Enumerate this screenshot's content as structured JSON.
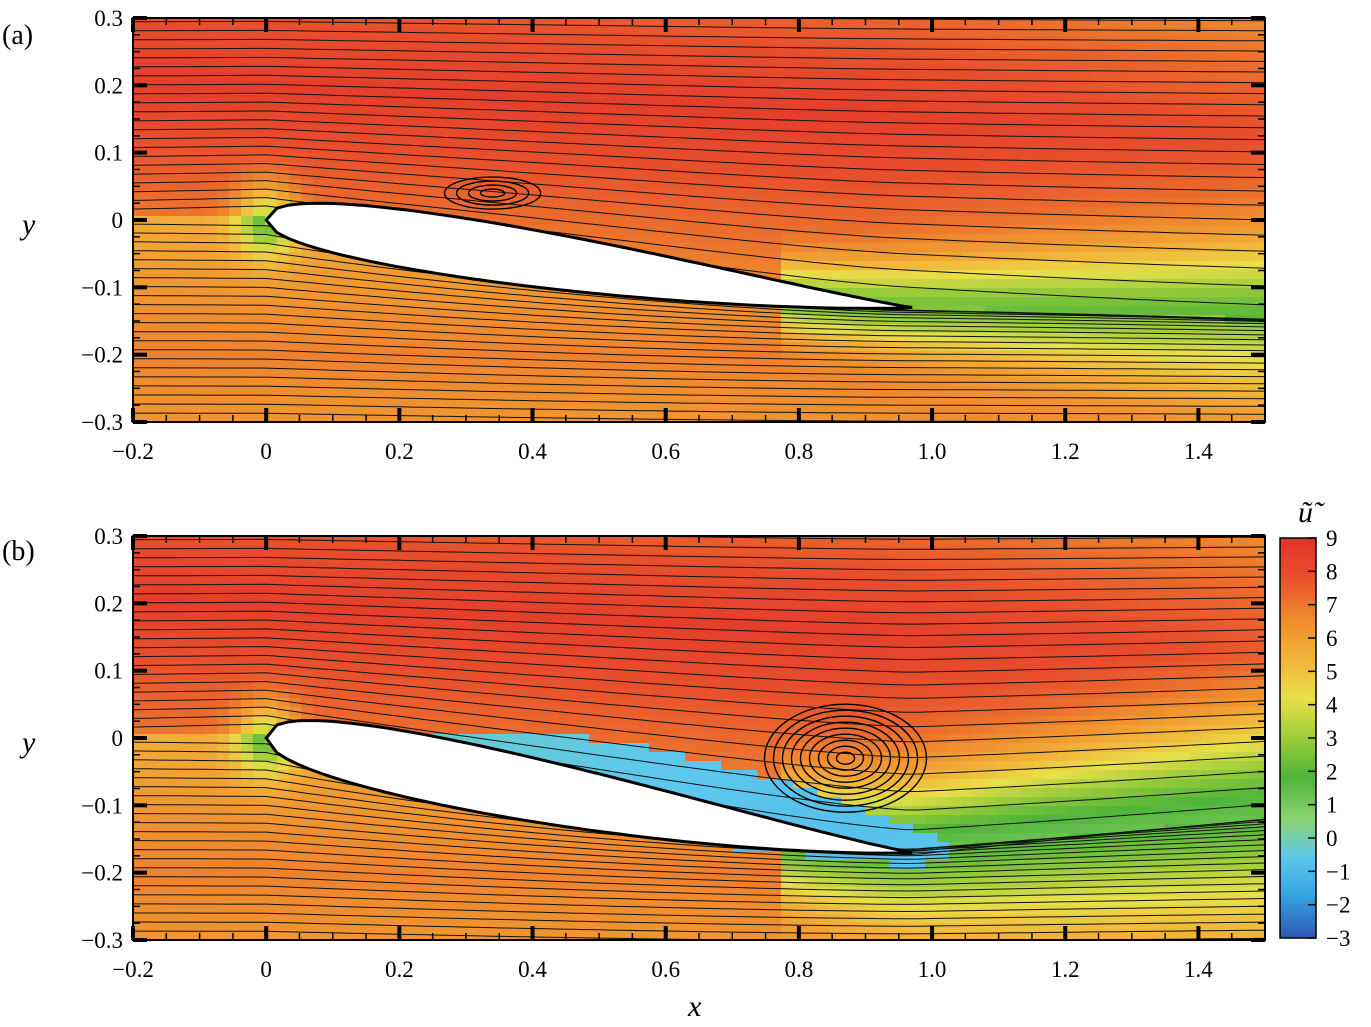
{
  "figure": {
    "colors": {
      "scale": [
        "#2e57b2",
        "#33a0e0",
        "#5cc8ee",
        "#8cd36e",
        "#4fb53a",
        "#9ccc3a",
        "#e8e04a",
        "#f2b238",
        "#ef8a2e",
        "#e8502c",
        "#e2322a"
      ]
    },
    "colorbar": {
      "title": "ũ̃",
      "ticks": [
        "9",
        "8",
        "7",
        "6",
        "5",
        "4",
        "3",
        "2",
        "1",
        "0",
        "−1",
        "−2",
        "−3"
      ]
    }
  },
  "chart_data": [
    {
      "type": "heatmap",
      "panel_label": "(a)",
      "title": "",
      "xlabel": "",
      "ylabel": "y",
      "xlim": [
        -0.2,
        1.5
      ],
      "ylim": [
        -0.3,
        0.3
      ],
      "x_ticks": [
        -0.2,
        0,
        0.2,
        0.4,
        0.6,
        0.8,
        1.0,
        1.2,
        1.4
      ],
      "x_tick_labels": [
        "−0.2",
        "0",
        "0.2",
        "0.4",
        "0.6",
        "0.8",
        "1.0",
        "1.2",
        "1.4"
      ],
      "y_ticks": [
        0.3,
        0.2,
        0.1,
        0,
        -0.1,
        -0.2,
        -0.3
      ],
      "y_tick_labels": [
        "0.3",
        "0.2",
        "0.1",
        "0",
        "−0.1",
        "−0.2",
        "−0.3"
      ],
      "colorbar_range": [
        -3,
        9
      ],
      "airfoil": {
        "leading_edge": [
          0.0,
          0.0
        ],
        "trailing_edge": [
          0.97,
          -0.13
        ]
      },
      "separation_bubble": {
        "x_range": [
          0.05,
          0.45
        ],
        "vortex_center": [
          0.34,
          0.04
        ]
      },
      "wake_centerline_end": [
        1.5,
        -0.15
      ]
    },
    {
      "type": "heatmap",
      "panel_label": "(b)",
      "title": "",
      "xlabel": "x",
      "ylabel": "y",
      "xlim": [
        -0.2,
        1.5
      ],
      "ylim": [
        -0.3,
        0.3
      ],
      "x_ticks": [
        -0.2,
        0,
        0.2,
        0.4,
        0.6,
        0.8,
        1.0,
        1.2,
        1.4
      ],
      "x_tick_labels": [
        "−0.2",
        "0",
        "0.2",
        "0.4",
        "0.6",
        "0.8",
        "1.0",
        "1.2",
        "1.4"
      ],
      "y_ticks": [
        0.3,
        0.2,
        0.1,
        0,
        -0.1,
        -0.2,
        -0.3
      ],
      "y_tick_labels": [
        "0.3",
        "0.2",
        "0.1",
        "0",
        "−0.1",
        "−0.2",
        "−0.3"
      ],
      "colorbar_range": [
        -3,
        9
      ],
      "airfoil": {
        "leading_edge": [
          0.0,
          0.0
        ],
        "trailing_edge": [
          0.97,
          -0.17
        ]
      },
      "separation_bubble": {
        "x_range": [
          0.1,
          1.02
        ],
        "vortex_center": [
          0.87,
          -0.03
        ]
      },
      "wake_centerline_end": [
        1.5,
        -0.12
      ]
    }
  ]
}
